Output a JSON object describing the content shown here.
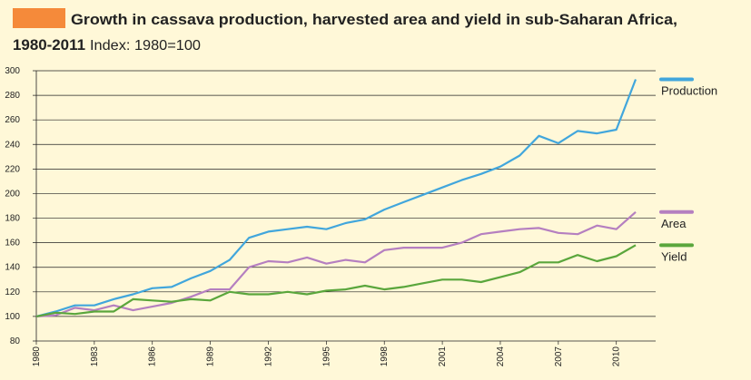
{
  "chart_data": {
    "type": "line",
    "title": "Growth in cassava production, harvested area and yield in sub-Saharan Africa,",
    "title_years": "1980-2011",
    "subtitle": "Index: 1980=100",
    "x": [
      1980,
      1981,
      1982,
      1983,
      1984,
      1985,
      1986,
      1987,
      1988,
      1989,
      1990,
      1991,
      1992,
      1993,
      1994,
      1995,
      1996,
      1997,
      1998,
      1999,
      2000,
      2001,
      2002,
      2003,
      2004,
      2005,
      2006,
      2007,
      2008,
      2009,
      2010,
      2011
    ],
    "series": [
      {
        "name": "Production",
        "color": "#41a6dc",
        "values": [
          100,
          104,
          109,
          109,
          114,
          118,
          123,
          124,
          131,
          137,
          146,
          164,
          169,
          171,
          173,
          171,
          176,
          179,
          187,
          193,
          199,
          205,
          211,
          216,
          222,
          231,
          247,
          241,
          251,
          249,
          252,
          293
        ]
      },
      {
        "name": "Area",
        "color": "#b57fc0",
        "values": [
          100,
          101,
          107,
          105,
          109,
          105,
          108,
          111,
          116,
          122,
          122,
          140,
          145,
          144,
          148,
          143,
          146,
          144,
          154,
          156,
          156,
          156,
          160,
          167,
          169,
          171,
          172,
          168,
          167,
          174,
          171,
          185
        ]
      },
      {
        "name": "Yield",
        "color": "#5aa63c",
        "values": [
          100,
          103,
          102,
          104,
          104,
          114,
          113,
          112,
          114,
          113,
          120,
          118,
          118,
          120,
          118,
          121,
          122,
          125,
          122,
          124,
          127,
          130,
          130,
          128,
          132,
          136,
          144,
          144,
          150,
          145,
          149,
          158
        ]
      }
    ],
    "xlim": [
      1980,
      2011
    ],
    "xticks": [
      1980,
      1983,
      1986,
      1989,
      1992,
      1995,
      1998,
      2001,
      2004,
      2007,
      2010
    ],
    "ylim": [
      80,
      300
    ],
    "yticks": [
      80,
      100,
      120,
      140,
      160,
      180,
      200,
      220,
      240,
      260,
      280,
      300
    ],
    "grid": true
  }
}
